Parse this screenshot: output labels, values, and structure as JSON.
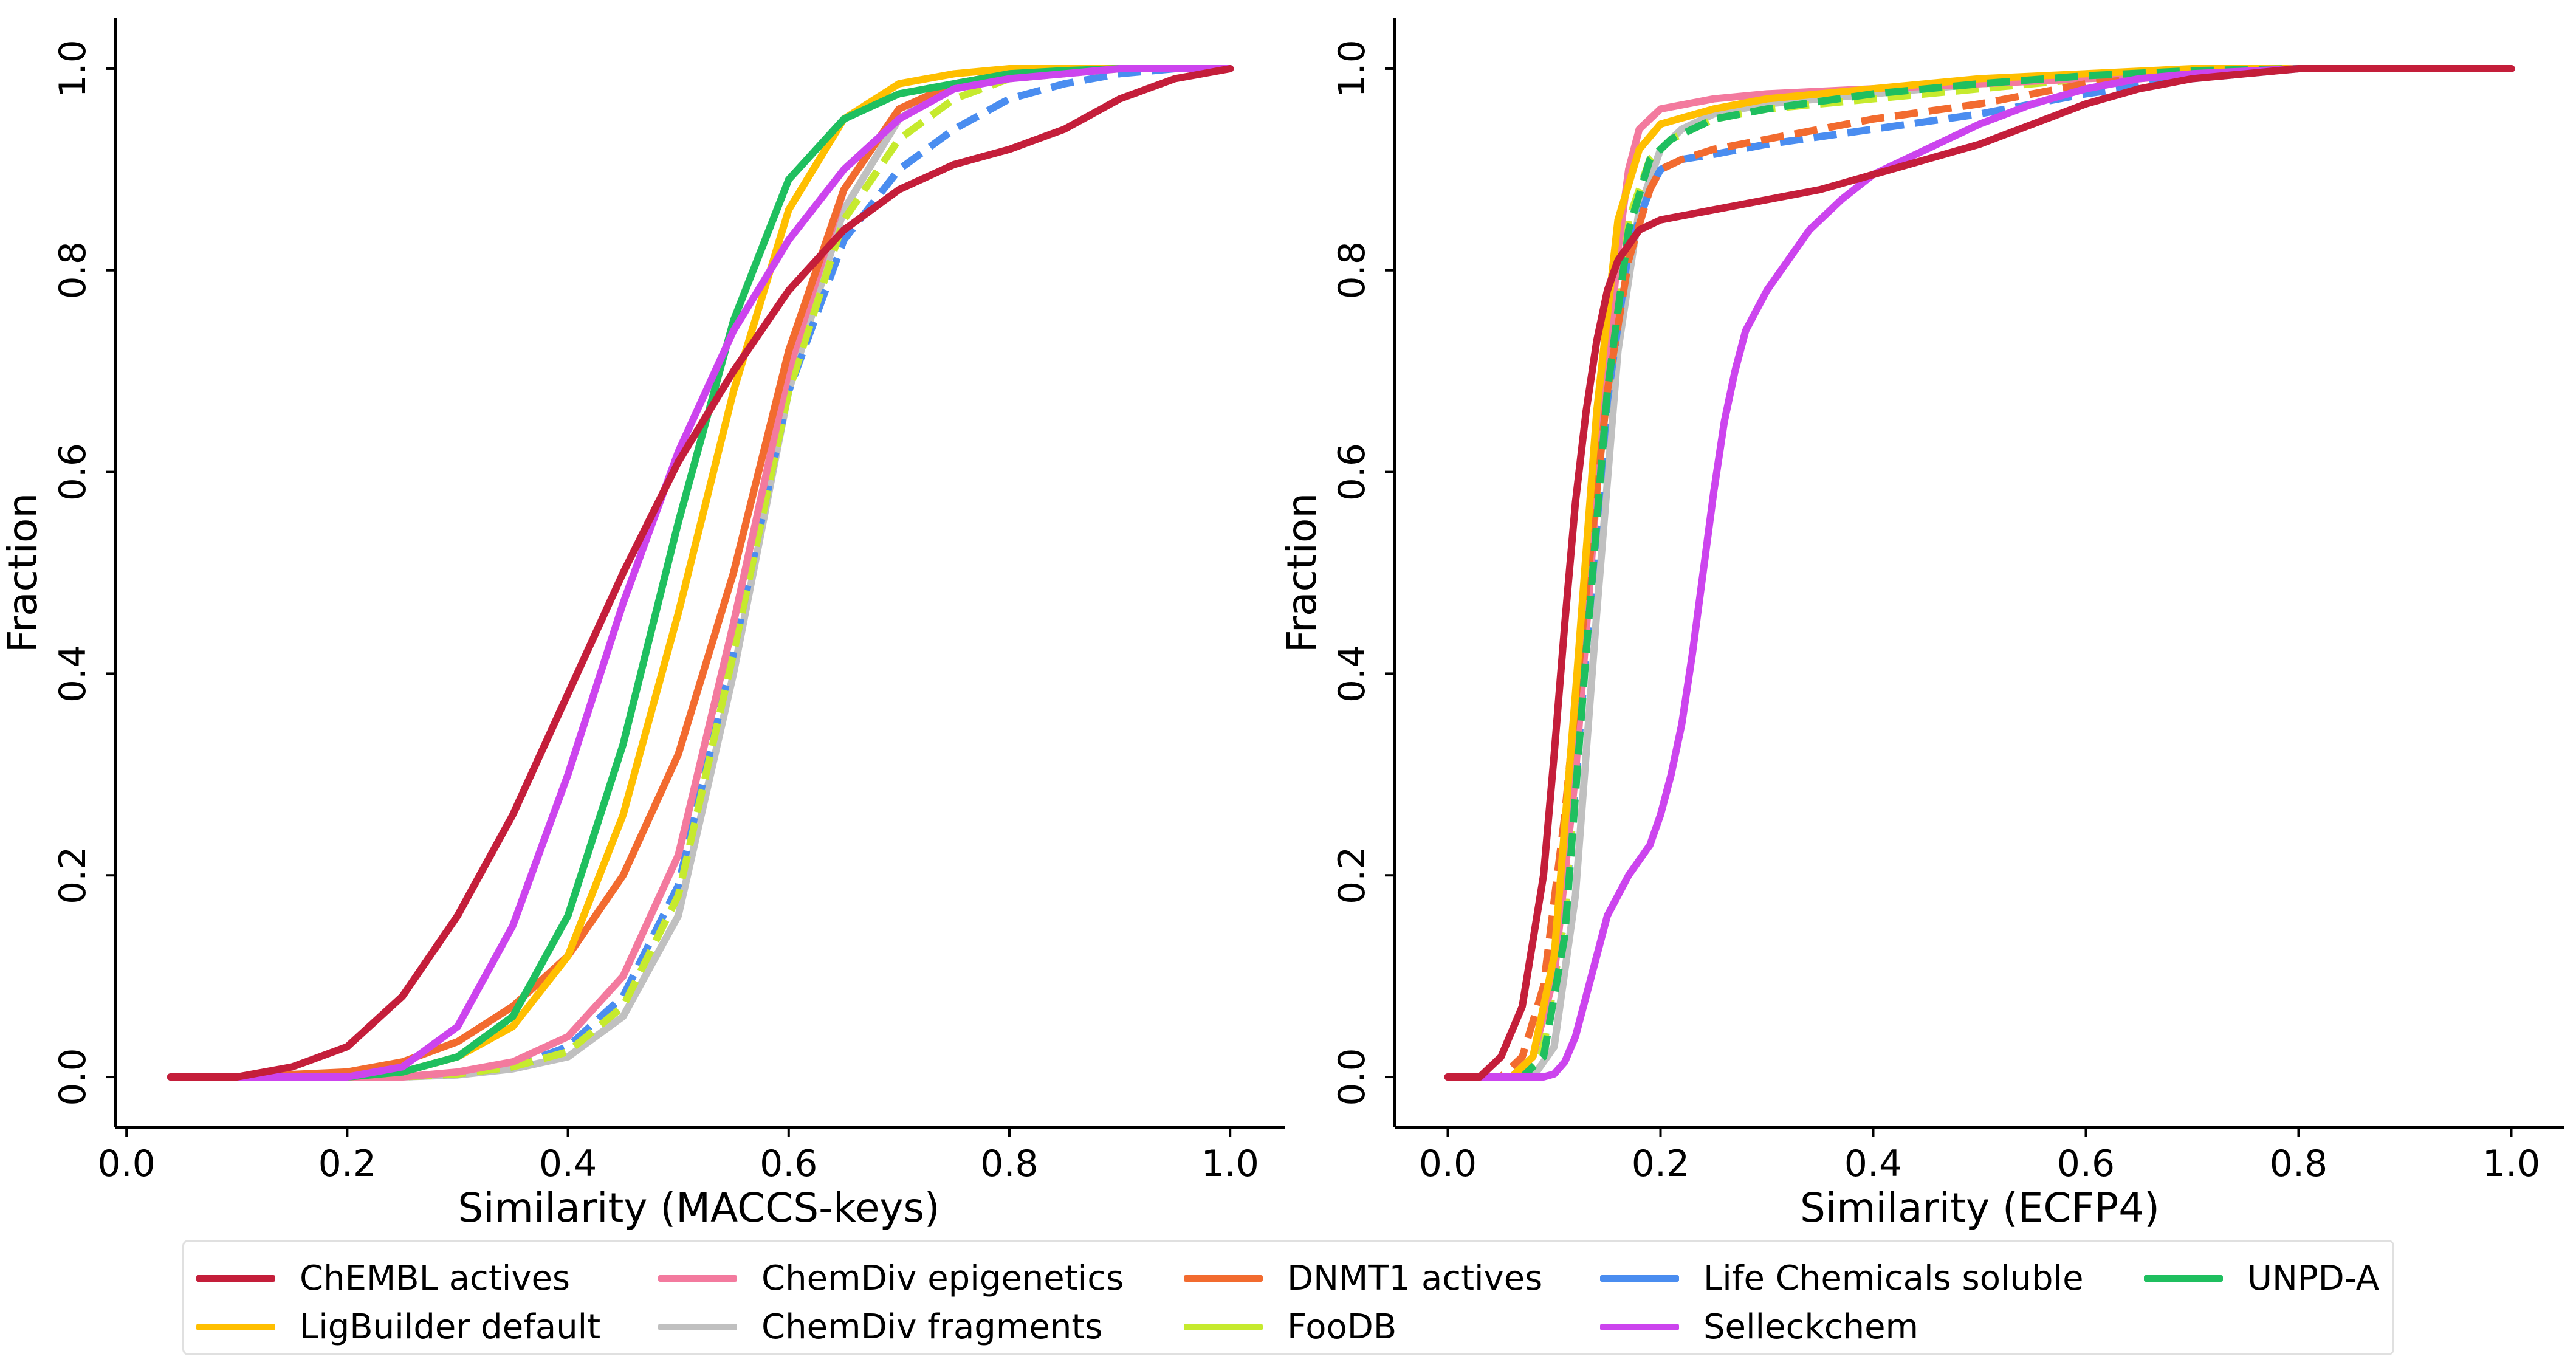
{
  "chart_data": [
    {
      "type": "line",
      "title": "",
      "xlabel": "Similarity (MACCS-keys)",
      "ylabel": "Fraction",
      "xlim": [
        -0.01,
        1.05
      ],
      "ylim": [
        -0.05,
        1.05
      ],
      "xticks": [
        "0.0",
        "0.2",
        "0.4",
        "0.6",
        "0.8",
        "1.0"
      ],
      "yticks": [
        "0.0",
        "0.2",
        "0.4",
        "0.6",
        "0.8",
        "1.0"
      ],
      "grid": false,
      "series": [
        {
          "name": "ChEMBL actives",
          "x": [
            0.04,
            0.1,
            0.15,
            0.2,
            0.25,
            0.3,
            0.35,
            0.4,
            0.45,
            0.5,
            0.55,
            0.6,
            0.65,
            0.7,
            0.75,
            0.8,
            0.85,
            0.9,
            0.95,
            1.0
          ],
          "y": [
            0,
            0,
            0.01,
            0.03,
            0.08,
            0.16,
            0.26,
            0.38,
            0.5,
            0.61,
            0.7,
            0.78,
            0.84,
            0.88,
            0.905,
            0.92,
            0.94,
            0.97,
            0.99,
            1.0
          ]
        },
        {
          "name": "ChemDiv epigenetics",
          "x": [
            0.04,
            0.25,
            0.3,
            0.35,
            0.4,
            0.45,
            0.5,
            0.55,
            0.6,
            0.65,
            0.7,
            0.75,
            0.8,
            0.85,
            0.9,
            1.0
          ],
          "y": [
            0,
            0,
            0.005,
            0.015,
            0.04,
            0.1,
            0.22,
            0.45,
            0.7,
            0.88,
            0.96,
            0.985,
            0.995,
            1.0,
            1.0,
            1.0
          ]
        },
        {
          "name": "DNMT1 actives",
          "x": [
            0.04,
            0.1,
            0.2,
            0.25,
            0.3,
            0.35,
            0.4,
            0.45,
            0.5,
            0.55,
            0.6,
            0.65,
            0.7,
            0.75,
            0.8,
            0.9,
            1.0
          ],
          "y": [
            0,
            0,
            0.005,
            0.015,
            0.035,
            0.07,
            0.12,
            0.2,
            0.32,
            0.5,
            0.72,
            0.88,
            0.96,
            0.985,
            0.995,
            1.0,
            1.0
          ]
        },
        {
          "name": "Life Chemicals soluble",
          "x": [
            0.04,
            0.25,
            0.3,
            0.35,
            0.4,
            0.45,
            0.5,
            0.55,
            0.6,
            0.65,
            0.7,
            0.75,
            0.8,
            0.85,
            0.9,
            0.95,
            1.0
          ],
          "y": [
            0,
            0,
            0.003,
            0.01,
            0.03,
            0.08,
            0.19,
            0.42,
            0.68,
            0.83,
            0.9,
            0.94,
            0.97,
            0.985,
            0.995,
            1.0,
            1.0
          ]
        },
        {
          "name": "UNPD-A",
          "x": [
            0.04,
            0.2,
            0.25,
            0.3,
            0.35,
            0.4,
            0.45,
            0.5,
            0.55,
            0.6,
            0.65,
            0.7,
            0.75,
            0.8,
            0.85,
            0.9,
            1.0
          ],
          "y": [
            0,
            0,
            0.005,
            0.02,
            0.06,
            0.16,
            0.33,
            0.55,
            0.75,
            0.89,
            0.95,
            0.975,
            0.985,
            0.995,
            0.998,
            1.0,
            1.0
          ]
        },
        {
          "name": "LigBuilder default",
          "x": [
            0.04,
            0.2,
            0.25,
            0.3,
            0.35,
            0.4,
            0.45,
            0.5,
            0.55,
            0.6,
            0.65,
            0.7,
            0.75,
            0.8,
            0.9,
            1.0
          ],
          "y": [
            0,
            0,
            0.005,
            0.02,
            0.05,
            0.12,
            0.26,
            0.46,
            0.68,
            0.86,
            0.95,
            0.985,
            0.995,
            1.0,
            1.0,
            1.0
          ]
        },
        {
          "name": "ChemDiv fragments",
          "x": [
            0.04,
            0.25,
            0.3,
            0.35,
            0.4,
            0.45,
            0.5,
            0.55,
            0.6,
            0.65,
            0.7,
            0.75,
            0.8,
            0.9,
            1.0
          ],
          "y": [
            0,
            0,
            0.002,
            0.008,
            0.02,
            0.06,
            0.16,
            0.4,
            0.68,
            0.86,
            0.95,
            0.985,
            0.995,
            1.0,
            1.0
          ]
        },
        {
          "name": "FooDB",
          "x": [
            0.04,
            0.25,
            0.3,
            0.35,
            0.4,
            0.45,
            0.5,
            0.55,
            0.6,
            0.65,
            0.7,
            0.75,
            0.8,
            0.9,
            1.0
          ],
          "y": [
            0,
            0,
            0.003,
            0.01,
            0.025,
            0.07,
            0.18,
            0.42,
            0.68,
            0.85,
            0.93,
            0.97,
            0.99,
            1.0,
            1.0
          ]
        },
        {
          "name": "Selleckchem",
          "x": [
            0.04,
            0.2,
            0.25,
            0.3,
            0.35,
            0.4,
            0.45,
            0.5,
            0.55,
            0.6,
            0.65,
            0.7,
            0.75,
            0.8,
            0.85,
            0.9,
            1.0
          ],
          "y": [
            0,
            0,
            0.01,
            0.05,
            0.15,
            0.3,
            0.47,
            0.62,
            0.74,
            0.83,
            0.9,
            0.95,
            0.98,
            0.99,
            0.995,
            1.0,
            1.0
          ]
        }
      ]
    },
    {
      "type": "line",
      "title": "",
      "xlabel": "Similarity (ECFP4)",
      "ylabel": "Fraction",
      "xlim": [
        -0.05,
        1.05
      ],
      "ylim": [
        -0.05,
        1.05
      ],
      "xticks": [
        "0.0",
        "0.2",
        "0.4",
        "0.6",
        "0.8",
        "1.0"
      ],
      "yticks": [
        "0.0",
        "0.2",
        "0.4",
        "0.6",
        "0.8",
        "1.0"
      ],
      "grid": false,
      "series": [
        {
          "name": "ChEMBL actives",
          "x": [
            0,
            0.03,
            0.05,
            0.07,
            0.09,
            0.1,
            0.11,
            0.12,
            0.13,
            0.14,
            0.15,
            0.16,
            0.18,
            0.2,
            0.25,
            0.3,
            0.35,
            0.4,
            0.45,
            0.5,
            0.55,
            0.6,
            0.65,
            0.7,
            0.75,
            0.8,
            0.9,
            1.0
          ],
          "y": [
            0,
            0,
            0.02,
            0.07,
            0.2,
            0.32,
            0.45,
            0.57,
            0.66,
            0.73,
            0.78,
            0.81,
            0.84,
            0.85,
            0.86,
            0.87,
            0.88,
            0.895,
            0.91,
            0.925,
            0.945,
            0.965,
            0.98,
            0.99,
            0.995,
            1.0,
            1.0,
            1.0
          ]
        },
        {
          "name": "ChemDiv epigenetics",
          "x": [
            0,
            0.06,
            0.08,
            0.1,
            0.12,
            0.14,
            0.16,
            0.17,
            0.18,
            0.2,
            0.25,
            0.3,
            0.4,
            0.5,
            0.6,
            0.7,
            0.8,
            1.0
          ],
          "y": [
            0,
            0,
            0.02,
            0.1,
            0.3,
            0.58,
            0.82,
            0.9,
            0.94,
            0.96,
            0.97,
            0.975,
            0.98,
            0.985,
            0.99,
            0.995,
            1.0,
            1.0
          ]
        },
        {
          "name": "DNMT1 actives",
          "x": [
            0,
            0.05,
            0.07,
            0.09,
            0.11,
            0.13,
            0.15,
            0.17,
            0.19,
            0.2,
            0.22,
            0.25,
            0.3,
            0.4,
            0.5,
            0.6,
            0.7,
            0.8,
            1.0
          ],
          "y": [
            0,
            0,
            0.02,
            0.09,
            0.26,
            0.48,
            0.68,
            0.81,
            0.88,
            0.9,
            0.91,
            0.92,
            0.93,
            0.95,
            0.965,
            0.985,
            0.995,
            1.0,
            1.0
          ]
        },
        {
          "name": "Life Chemicals soluble",
          "x": [
            0,
            0.07,
            0.09,
            0.11,
            0.13,
            0.15,
            0.17,
            0.19,
            0.2,
            0.22,
            0.25,
            0.3,
            0.4,
            0.5,
            0.6,
            0.7,
            0.8,
            1.0
          ],
          "y": [
            0,
            0,
            0.03,
            0.16,
            0.42,
            0.67,
            0.82,
            0.88,
            0.9,
            0.91,
            0.915,
            0.925,
            0.94,
            0.955,
            0.975,
            0.99,
            1.0,
            1.0
          ]
        },
        {
          "name": "UNPD-A",
          "x": [
            0,
            0.07,
            0.09,
            0.11,
            0.13,
            0.15,
            0.17,
            0.19,
            0.21,
            0.25,
            0.3,
            0.4,
            0.5,
            0.6,
            0.7,
            0.8,
            1.0
          ],
          "y": [
            0,
            0,
            0.02,
            0.14,
            0.42,
            0.68,
            0.84,
            0.91,
            0.93,
            0.95,
            0.96,
            0.975,
            0.985,
            0.993,
            0.998,
            1.0,
            1.0
          ]
        },
        {
          "name": "LigBuilder default",
          "x": [
            0,
            0.06,
            0.08,
            0.1,
            0.12,
            0.14,
            0.16,
            0.18,
            0.2,
            0.25,
            0.3,
            0.4,
            0.5,
            0.6,
            0.7,
            0.8,
            1.0
          ],
          "y": [
            0,
            0,
            0.02,
            0.12,
            0.38,
            0.66,
            0.85,
            0.92,
            0.945,
            0.96,
            0.97,
            0.98,
            0.99,
            0.995,
            1.0,
            1.0,
            1.0
          ]
        },
        {
          "name": "ChemDiv fragments",
          "x": [
            0,
            0.08,
            0.1,
            0.12,
            0.14,
            0.16,
            0.18,
            0.2,
            0.22,
            0.25,
            0.3,
            0.4,
            0.5,
            0.6,
            0.7,
            0.8,
            1.0
          ],
          "y": [
            0,
            0,
            0.03,
            0.18,
            0.46,
            0.72,
            0.86,
            0.92,
            0.94,
            0.955,
            0.965,
            0.975,
            0.985,
            0.99,
            0.995,
            1.0,
            1.0
          ]
        },
        {
          "name": "FooDB",
          "x": [
            0,
            0.07,
            0.09,
            0.11,
            0.13,
            0.15,
            0.17,
            0.19,
            0.21,
            0.25,
            0.3,
            0.4,
            0.5,
            0.6,
            0.7,
            0.8,
            1.0
          ],
          "y": [
            0,
            0,
            0.03,
            0.16,
            0.45,
            0.7,
            0.85,
            0.91,
            0.93,
            0.95,
            0.96,
            0.97,
            0.98,
            0.99,
            0.995,
            1.0,
            1.0
          ]
        },
        {
          "name": "Selleckchem",
          "x": [
            0,
            0.09,
            0.1,
            0.11,
            0.12,
            0.13,
            0.14,
            0.15,
            0.17,
            0.19,
            0.2,
            0.21,
            0.22,
            0.23,
            0.24,
            0.25,
            0.26,
            0.27,
            0.28,
            0.29,
            0.3,
            0.32,
            0.34,
            0.37,
            0.4,
            0.45,
            0.5,
            0.55,
            0.6,
            0.65,
            0.7,
            0.8,
            1.0
          ],
          "y": [
            0,
            0,
            0.003,
            0.015,
            0.04,
            0.08,
            0.12,
            0.16,
            0.2,
            0.23,
            0.26,
            0.3,
            0.35,
            0.42,
            0.5,
            0.58,
            0.65,
            0.7,
            0.74,
            0.76,
            0.78,
            0.81,
            0.84,
            0.87,
            0.895,
            0.92,
            0.945,
            0.965,
            0.98,
            0.99,
            0.995,
            1.0,
            1.0
          ]
        }
      ]
    }
  ],
  "colors": {
    "ChEMBL actives": "#c41e3a",
    "ChemDiv epigenetics": "#f37a9e",
    "DNMT1 actives": "#f26b2f",
    "Life Chemicals soluble": "#4a8df0",
    "UNPD-A": "#1fbf5f",
    "LigBuilder default": "#ffbf00",
    "ChemDiv fragments": "#c0c0c0",
    "FooDB": "#c6ea2e",
    "Selleckchem": "#cc44ee"
  },
  "dashed": {
    "left": [
      "Life Chemicals soluble",
      "FooDB"
    ],
    "right": [
      "Life Chemicals soluble",
      "UNPD-A",
      "FooDB",
      "DNMT1 actives"
    ]
  },
  "legend": {
    "rows": [
      [
        "ChEMBL actives",
        "ChemDiv epigenetics",
        "DNMT1 actives",
        "Life Chemicals soluble",
        "UNPD-A"
      ],
      [
        "LigBuilder default",
        "ChemDiv fragments",
        "FooDB",
        "Selleckchem"
      ]
    ]
  }
}
